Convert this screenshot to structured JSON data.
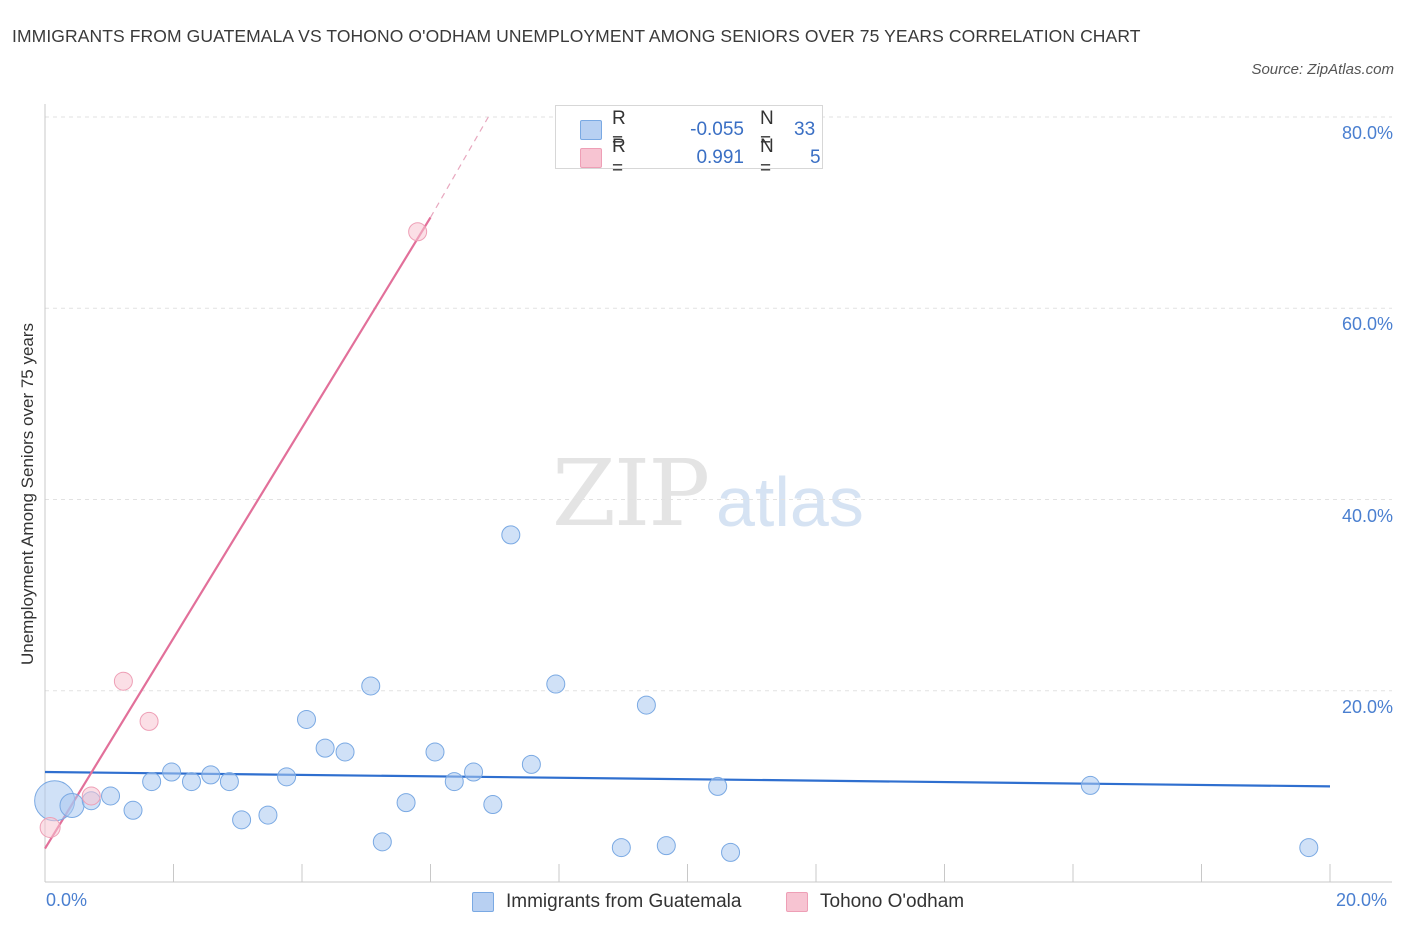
{
  "title": "IMMIGRANTS FROM GUATEMALA VS TOHONO O'ODHAM UNEMPLOYMENT AMONG SENIORS OVER 75 YEARS CORRELATION CHART",
  "source": "Source: ZipAtlas.com",
  "watermark": {
    "zip": "ZIP",
    "atlas": "atlas"
  },
  "legend_top": [
    {
      "r_label": "R =",
      "r_value": "-0.055",
      "n_label": "N =",
      "n_value": "33",
      "color": "#b8d0f2"
    },
    {
      "r_label": "R =",
      "r_value": "0.991",
      "n_label": "N =",
      "n_value": "5",
      "color": "#f7c4d2"
    }
  ],
  "chart_data": {
    "type": "scatter",
    "title": "IMMIGRANTS FROM GUATEMALA VS TOHONO O'ODHAM UNEMPLOYMENT AMONG SENIORS OVER 75 YEARS CORRELATION CHART",
    "xlabel": "",
    "ylabel": "Unemployment Among Seniors over 75 years",
    "xlim": [
      0,
      20
    ],
    "ylim": [
      0,
      80
    ],
    "x_tick_labels": [
      "0.0%",
      "20.0%"
    ],
    "y_tick_labels": [
      "20.0%",
      "40.0%",
      "60.0%",
      "80.0%"
    ],
    "y_ticks": [
      20,
      40,
      60,
      80
    ],
    "grid": true,
    "legend_position": "bottom",
    "series": [
      {
        "name": "Immigrants from Guatemala",
        "color": "#a9c8f0",
        "edge": "#7aa9e3",
        "trend_color": "#2f6fcf",
        "trend": {
          "x": [
            0,
            20
          ],
          "y": [
            11.5,
            10.0
          ]
        },
        "points": [
          {
            "x": 0.15,
            "y": 8.5,
            "s": 20
          },
          {
            "x": 0.42,
            "y": 8.0,
            "s": 12
          },
          {
            "x": 0.72,
            "y": 8.5,
            "s": 9
          },
          {
            "x": 1.02,
            "y": 9.0,
            "s": 9
          },
          {
            "x": 1.37,
            "y": 7.5,
            "s": 9
          },
          {
            "x": 1.66,
            "y": 10.5,
            "s": 9
          },
          {
            "x": 1.97,
            "y": 11.5,
            "s": 9
          },
          {
            "x": 2.28,
            "y": 10.5,
            "s": 9
          },
          {
            "x": 2.58,
            "y": 11.2,
            "s": 9
          },
          {
            "x": 2.87,
            "y": 10.5,
            "s": 9
          },
          {
            "x": 3.06,
            "y": 6.5,
            "s": 9
          },
          {
            "x": 3.47,
            "y": 7.0,
            "s": 9
          },
          {
            "x": 3.76,
            "y": 11.0,
            "s": 9
          },
          {
            "x": 4.07,
            "y": 17.0,
            "s": 9
          },
          {
            "x": 4.36,
            "y": 14.0,
            "s": 9
          },
          {
            "x": 4.67,
            "y": 13.6,
            "s": 9
          },
          {
            "x": 5.07,
            "y": 20.5,
            "s": 9
          },
          {
            "x": 5.25,
            "y": 4.2,
            "s": 9
          },
          {
            "x": 5.62,
            "y": 8.3,
            "s": 9
          },
          {
            "x": 6.07,
            "y": 13.6,
            "s": 9
          },
          {
            "x": 6.37,
            "y": 10.5,
            "s": 9
          },
          {
            "x": 6.67,
            "y": 11.5,
            "s": 9
          },
          {
            "x": 6.97,
            "y": 8.1,
            "s": 9
          },
          {
            "x": 7.25,
            "y": 36.3,
            "s": 9
          },
          {
            "x": 7.57,
            "y": 12.3,
            "s": 9
          },
          {
            "x": 7.95,
            "y": 20.7,
            "s": 9
          },
          {
            "x": 8.97,
            "y": 3.6,
            "s": 9
          },
          {
            "x": 9.36,
            "y": 18.5,
            "s": 9
          },
          {
            "x": 9.67,
            "y": 3.8,
            "s": 9
          },
          {
            "x": 10.47,
            "y": 10.0,
            "s": 9
          },
          {
            "x": 10.67,
            "y": 3.1,
            "s": 9
          },
          {
            "x": 16.27,
            "y": 10.1,
            "s": 9
          },
          {
            "x": 19.67,
            "y": 3.6,
            "s": 9
          }
        ]
      },
      {
        "name": "Tohono O'odham",
        "color": "#f7c4d2",
        "edge": "#ee9fb6",
        "trend_color": "#e2709a",
        "trend": {
          "x": [
            0,
            6.0
          ],
          "y": [
            3.5,
            69.5
          ]
        },
        "trend_dashed": {
          "x": [
            6.0,
            6.9
          ],
          "y": [
            69.5,
            80.0
          ]
        },
        "points": [
          {
            "x": 0.08,
            "y": 5.7,
            "s": 10
          },
          {
            "x": 0.72,
            "y": 9.0,
            "s": 9
          },
          {
            "x": 1.22,
            "y": 21.0,
            "s": 9
          },
          {
            "x": 1.62,
            "y": 16.8,
            "s": 9
          },
          {
            "x": 5.8,
            "y": 68.0,
            "s": 9
          }
        ]
      }
    ]
  },
  "legend_bottom": [
    {
      "label": "Immigrants from Guatemala",
      "color": "#b8d0f2"
    },
    {
      "label": "Tohono O'odham",
      "color": "#f7c4d2"
    }
  ]
}
